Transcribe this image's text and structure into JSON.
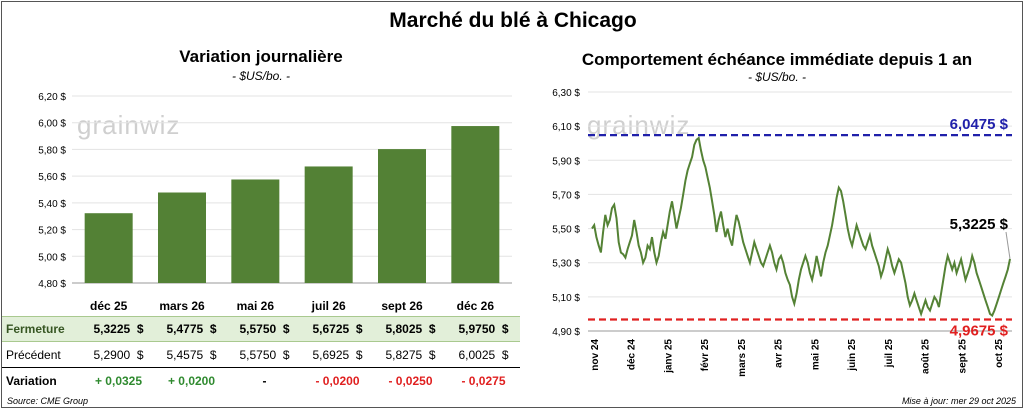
{
  "title": "Marché du blé à Chicago",
  "left": {
    "title": "Variation journalière",
    "unit": "- $US/bo. -"
  },
  "right": {
    "title": "Comportement échéance immédiate depuis 1 an",
    "unit": "- $US/bo. -"
  },
  "watermark": "grainwiz",
  "colors": {
    "bar": "#538135",
    "line": "#548235",
    "high": "#2020aa",
    "low": "#e02020"
  },
  "chart_data": [
    {
      "type": "bar",
      "categories": [
        "déc 25",
        "mars 26",
        "mai 26",
        "juil 26",
        "sept 26",
        "déc 26"
      ],
      "values": [
        5.3225,
        5.4775,
        5.575,
        5.6725,
        5.8025,
        5.975
      ],
      "ylim": [
        4.8,
        6.2
      ],
      "yticks": [
        "4,80 $",
        "5,00 $",
        "5,20 $",
        "5,40 $",
        "5,60 $",
        "5,80 $",
        "6,00 $",
        "6,20 $"
      ],
      "ytick_values": [
        4.8,
        5.0,
        5.2,
        5.4,
        5.6,
        5.8,
        6.0,
        6.2
      ],
      "grid": true
    },
    {
      "type": "line",
      "ylim": [
        4.9,
        6.3
      ],
      "yticks": [
        "4,90 $",
        "5,10 $",
        "5,30 $",
        "5,50 $",
        "5,70 $",
        "5,90 $",
        "6,10 $",
        "6,30 $"
      ],
      "ytick_values": [
        4.9,
        5.1,
        5.3,
        5.5,
        5.7,
        5.9,
        6.1,
        6.3
      ],
      "xticks": [
        "nov 24",
        "déc 24",
        "janv 25",
        "févr 25",
        "mars 25",
        "avr 25",
        "mai 25",
        "juin 25",
        "juil 25",
        "août 25",
        "sept 25",
        "oct 25"
      ],
      "high": {
        "value": 6.0475,
        "label": "6,0475 $"
      },
      "low": {
        "value": 4.9675,
        "label": "4,9675 $"
      },
      "last": {
        "value": 5.3225,
        "label": "5,3225 $"
      },
      "series": [
        {
          "values": [
            5.5,
            5.52,
            5.45,
            5.4,
            5.36,
            5.48,
            5.58,
            5.52,
            5.55,
            5.62,
            5.64,
            5.56,
            5.42,
            5.36,
            5.35,
            5.33,
            5.38,
            5.42,
            5.46,
            5.55,
            5.48,
            5.4,
            5.36,
            5.3,
            5.33,
            5.4,
            5.38,
            5.45,
            5.36,
            5.3,
            5.34,
            5.42,
            5.48,
            5.44,
            5.52,
            5.6,
            5.66,
            5.58,
            5.5,
            5.56,
            5.62,
            5.7,
            5.78,
            5.84,
            5.88,
            5.92,
            5.99,
            6.02,
            6.03,
            5.96,
            5.9,
            5.86,
            5.8,
            5.74,
            5.66,
            5.58,
            5.48,
            5.55,
            5.6,
            5.52,
            5.45,
            5.5,
            5.44,
            5.4,
            5.5,
            5.58,
            5.54,
            5.48,
            5.42,
            5.38,
            5.34,
            5.3,
            5.36,
            5.42,
            5.38,
            5.34,
            5.3,
            5.28,
            5.32,
            5.36,
            5.4,
            5.36,
            5.3,
            5.26,
            5.32,
            5.34,
            5.3,
            5.24,
            5.2,
            5.17,
            5.1,
            5.06,
            5.12,
            5.2,
            5.26,
            5.3,
            5.34,
            5.3,
            5.24,
            5.2,
            5.26,
            5.34,
            5.28,
            5.22,
            5.3,
            5.36,
            5.4,
            5.46,
            5.52,
            5.6,
            5.68,
            5.74,
            5.72,
            5.66,
            5.58,
            5.5,
            5.44,
            5.4,
            5.46,
            5.52,
            5.48,
            5.44,
            5.4,
            5.38,
            5.42,
            5.46,
            5.4,
            5.36,
            5.32,
            5.28,
            5.22,
            5.26,
            5.32,
            5.38,
            5.34,
            5.28,
            5.24,
            5.28,
            5.32,
            5.3,
            5.24,
            5.18,
            5.1,
            5.05,
            5.08,
            5.12,
            5.08,
            5.04,
            5.0,
            5.04,
            5.08,
            5.04,
            5.02,
            5.06,
            5.1,
            5.08,
            5.04,
            5.12,
            5.2,
            5.28,
            5.34,
            5.3,
            5.26,
            5.3,
            5.24,
            5.28,
            5.32,
            5.26,
            5.2,
            5.24,
            5.28,
            5.34,
            5.3,
            5.24,
            5.2,
            5.16,
            5.12,
            5.08,
            5.04,
            5.0,
            4.99,
            5.02,
            5.06,
            5.1,
            5.14,
            5.18,
            5.22,
            5.26,
            5.3225
          ]
        }
      ]
    }
  ],
  "table": {
    "headers": [
      "déc 25",
      "mars 26",
      "mai 26",
      "juil 26",
      "sept 26",
      "déc 26"
    ],
    "rows": [
      {
        "label": "Fermeture",
        "cells": [
          "5,3225  $",
          "5,4775  $",
          "5,5750  $",
          "5,6725  $",
          "5,8025  $",
          "5,9750  $"
        ]
      },
      {
        "label": "Précédent",
        "cells": [
          "5,2900  $",
          "5,4575  $",
          "5,5750  $",
          "5,6925  $",
          "5,8275  $",
          "6,0025  $"
        ]
      },
      {
        "label": "Variation",
        "cells": [
          "+ 0,0325",
          "+ 0,0200",
          "-",
          "- 0,0200",
          "- 0,0250",
          "- 0,0275"
        ],
        "signs": [
          "pos",
          "pos",
          "neu",
          "neg",
          "neg",
          "neg"
        ]
      }
    ]
  },
  "source": "Source: CME Group",
  "updated": "Mise à jour: mer 29 oct 2025"
}
